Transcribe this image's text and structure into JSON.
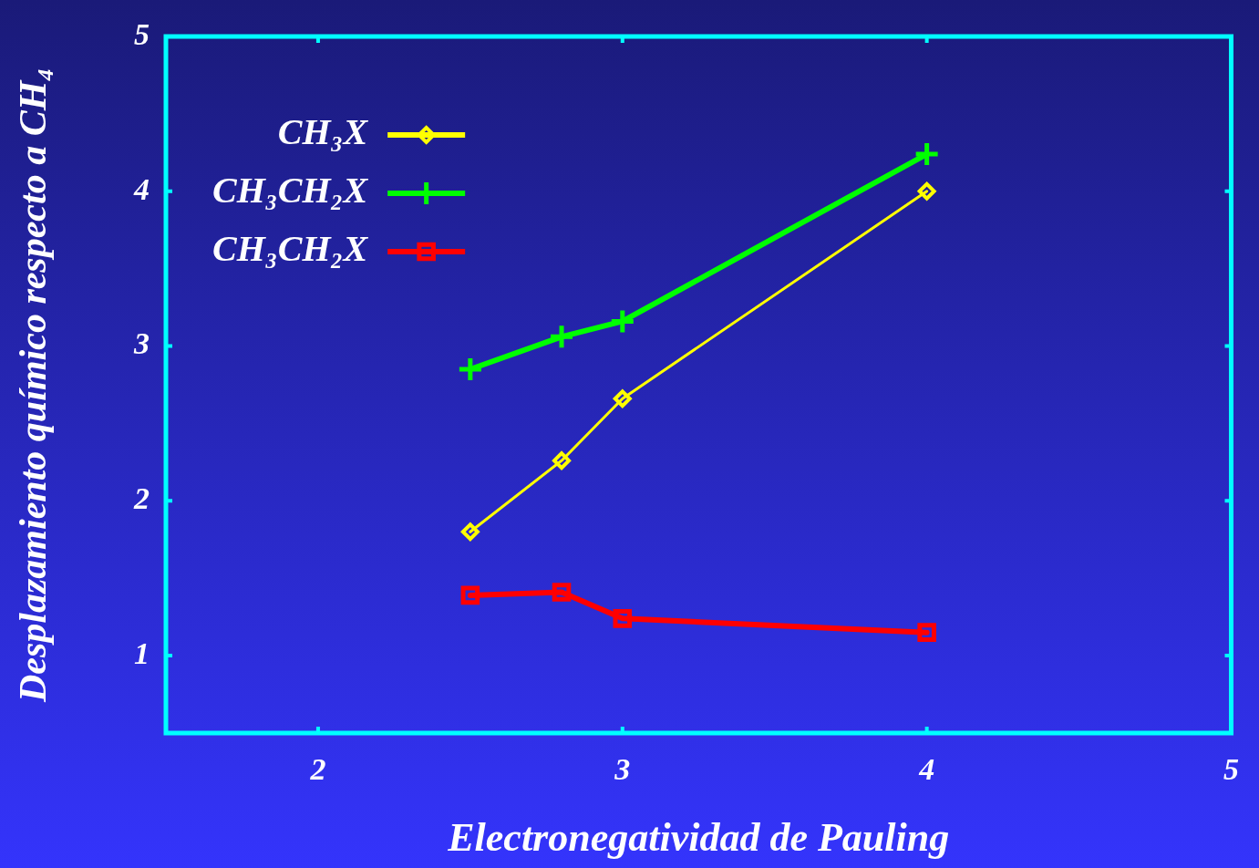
{
  "chart_data": {
    "type": "line",
    "xlabel": "Electronegatividad de Pauling",
    "ylabel": "Desplazamiento químico respecto a CH₄",
    "x": [
      2.5,
      2.8,
      3.0,
      4.0
    ],
    "xlim": [
      1.5,
      5
    ],
    "ylim": [
      0.5,
      5
    ],
    "xticks": [
      2,
      3,
      4,
      5
    ],
    "yticks": [
      1,
      2,
      3,
      4,
      5
    ],
    "grid": false,
    "legend": "top left",
    "series": [
      {
        "name": "CH₃X",
        "color": "#ffff00",
        "marker": "diamond",
        "values": [
          1.8,
          2.26,
          2.66,
          4.0
        ]
      },
      {
        "name": "CH₃CH₂X",
        "color": "#00ff00",
        "marker": "cross",
        "values": [
          2.85,
          3.06,
          3.16,
          4.24
        ]
      },
      {
        "name": "CH₃CH₂X",
        "color": "#ff0000",
        "marker": "square",
        "values": [
          1.39,
          1.41,
          1.24,
          1.15
        ]
      }
    ]
  }
}
